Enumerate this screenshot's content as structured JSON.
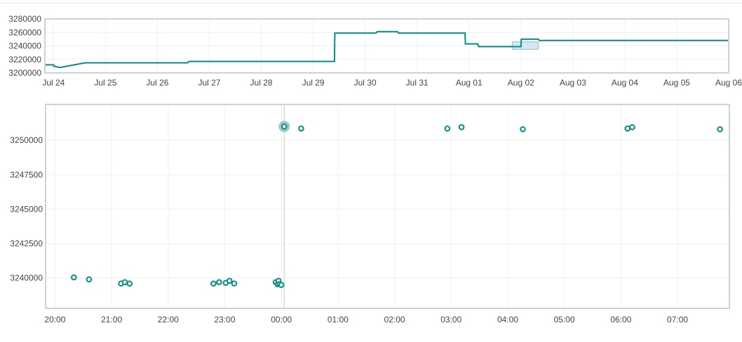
{
  "chart_data": [
    {
      "type": "line",
      "role": "overview-navigator",
      "title": "",
      "xlabel": "",
      "ylabel": "",
      "xlim": [
        "2023-07-23 20:00",
        "2023-08-06 00:00"
      ],
      "ylim": [
        3200000,
        3280000
      ],
      "y_ticks": [
        "3200000",
        "3220000",
        "3240000",
        "3260000",
        "3280000"
      ],
      "x_ticks": [
        {
          "label": "Jul 24",
          "t": "2023-07-24 00:00"
        },
        {
          "label": "Jul 25",
          "t": "2023-07-25 00:00"
        },
        {
          "label": "Jul 26",
          "t": "2023-07-26 00:00"
        },
        {
          "label": "Jul 27",
          "t": "2023-07-27 00:00"
        },
        {
          "label": "Jul 28",
          "t": "2023-07-28 00:00"
        },
        {
          "label": "Jul 29",
          "t": "2023-07-29 00:00"
        },
        {
          "label": "Jul 30",
          "t": "2023-07-30 00:00"
        },
        {
          "label": "Jul 31",
          "t": "2023-07-31 00:00"
        },
        {
          "label": "Aug 01",
          "t": "2023-08-01 00:00"
        },
        {
          "label": "Aug 02",
          "t": "2023-08-02 00:00"
        },
        {
          "label": "Aug 03",
          "t": "2023-08-03 00:00"
        },
        {
          "label": "Aug 04",
          "t": "2023-08-04 00:00"
        },
        {
          "label": "Aug 05",
          "t": "2023-08-05 00:00"
        },
        {
          "label": "Aug 06",
          "t": "2023-08-06 00:00"
        }
      ],
      "series": [
        {
          "step": true,
          "points": [
            [
              "2023-07-23 20:00",
              3212000
            ],
            [
              "2023-07-24 00:00",
              3212000
            ],
            [
              "2023-07-24 00:05",
              3210000
            ],
            [
              "2023-07-24 03:00",
              3208000
            ],
            [
              "2023-07-24 14:30",
              3215000
            ],
            [
              "2023-07-26 14:00",
              3215000
            ],
            [
              "2023-07-26 14:30",
              3217000
            ],
            [
              "2023-07-29 09:50",
              3217000
            ],
            [
              "2023-07-29 10:00",
              3259000
            ],
            [
              "2023-07-30 05:00",
              3259000
            ],
            [
              "2023-07-30 05:30",
              3261000
            ],
            [
              "2023-07-30 15:00",
              3261000
            ],
            [
              "2023-07-30 15:30",
              3259000
            ],
            [
              "2023-07-31 22:10",
              3259000
            ],
            [
              "2023-07-31 22:20",
              3243000
            ],
            [
              "2023-08-01 04:00",
              3243000
            ],
            [
              "2023-08-01 04:30",
              3239000
            ],
            [
              "2023-08-02 00:00",
              3239000
            ],
            [
              "2023-08-02 00:10",
              3250000
            ],
            [
              "2023-08-02 08:00",
              3250000
            ],
            [
              "2023-08-02 08:30",
              3248000
            ],
            [
              "2023-08-06 00:00",
              3248000
            ]
          ]
        }
      ],
      "selection": [
        "2023-08-01 20:00",
        "2023-08-02 08:00"
      ],
      "line_color": "#078c83",
      "selection_color": "#cfe4f2",
      "frame_color": "#c9d3dd"
    },
    {
      "type": "scatter",
      "role": "detail",
      "title": "",
      "xlabel": "",
      "ylabel": "",
      "xlim": [
        "19:50",
        "07:55"
      ],
      "ylim": [
        3237800,
        3252600
      ],
      "grid": true,
      "y_ticks": [
        "3240000",
        "3242500",
        "3245000",
        "3247500",
        "3250000"
      ],
      "x_ticks": [
        "20:00",
        "21:00",
        "22:00",
        "23:00",
        "00:00",
        "01:00",
        "02:00",
        "03:00",
        "04:00",
        "05:00",
        "06:00",
        "07:00"
      ],
      "series": [
        {
          "points": [
            [
              "20:20",
              3240050
            ],
            [
              "20:36",
              3239900
            ],
            [
              "21:10",
              3239600
            ],
            [
              "21:14",
              3239700
            ],
            [
              "21:19",
              3239600
            ],
            [
              "22:48",
              3239600
            ],
            [
              "22:54",
              3239700
            ],
            [
              "23:01",
              3239650
            ],
            [
              "23:05",
              3239800
            ],
            [
              "23:10",
              3239600
            ],
            [
              "23:54",
              3239700
            ],
            [
              "23:56",
              3239550
            ],
            [
              "23:57",
              3239800
            ],
            [
              "23:58",
              3239550
            ],
            [
              "00:00",
              3239500
            ],
            [
              "00:21",
              3250850
            ],
            [
              "02:56",
              3250850
            ],
            [
              "03:11",
              3250950
            ],
            [
              "04:16",
              3250800
            ],
            [
              "06:07",
              3250850
            ],
            [
              "06:12",
              3250950
            ],
            [
              "07:45",
              3250800
            ]
          ]
        }
      ],
      "highlighted_point": [
        "00:03",
        3251000
      ],
      "crosshair_time": "00:03",
      "marker_color": "#078c83",
      "highlight_color": "#7fc0bc",
      "frame_color": "#c9d3dd"
    }
  ]
}
